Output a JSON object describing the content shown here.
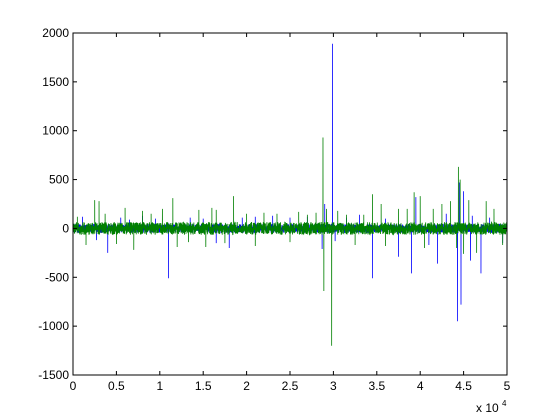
{
  "chart_data": {
    "type": "line",
    "title": "",
    "xlabel": "",
    "ylabel": "",
    "xlim": [
      0,
      50000
    ],
    "ylim": [
      -1500,
      2000
    ],
    "x_ticks": [
      0,
      5000,
      10000,
      15000,
      20000,
      25000,
      30000,
      35000,
      40000,
      45000,
      50000
    ],
    "x_tick_labels": [
      "0",
      "0.5",
      "1",
      "1.5",
      "2",
      "2.5",
      "3",
      "3.5",
      "4",
      "4.5",
      "5"
    ],
    "x_exponent_base": "x 10",
    "x_exponent_power": "4",
    "y_ticks": [
      -1500,
      -1000,
      -500,
      0,
      500,
      1000,
      1500,
      2000
    ],
    "y_tick_labels": [
      "-1500",
      "-1000",
      "-500",
      "0",
      "500",
      "1000",
      "1500",
      "2000"
    ],
    "grid": false,
    "legend": "none",
    "series": [
      {
        "color": "#0000ff",
        "baseline_amplitude": 45,
        "spikes": [
          [
            1100,
            120
          ],
          [
            2700,
            -120
          ],
          [
            4000,
            -250
          ],
          [
            5500,
            110
          ],
          [
            6500,
            90
          ],
          [
            8000,
            130
          ],
          [
            9500,
            100
          ],
          [
            11000,
            -510
          ],
          [
            13500,
            110
          ],
          [
            15000,
            100
          ],
          [
            16500,
            -150
          ],
          [
            18000,
            -200
          ],
          [
            19500,
            110
          ],
          [
            21000,
            120
          ],
          [
            23000,
            130
          ],
          [
            25000,
            110
          ],
          [
            27000,
            120
          ],
          [
            28700,
            -210
          ],
          [
            29000,
            250
          ],
          [
            29900,
            1890
          ],
          [
            30200,
            -130
          ],
          [
            31500,
            110
          ],
          [
            33000,
            140
          ],
          [
            34500,
            -510
          ],
          [
            36000,
            100
          ],
          [
            37500,
            -290
          ],
          [
            39000,
            -460
          ],
          [
            39500,
            320
          ],
          [
            41000,
            -170
          ],
          [
            42000,
            -360
          ],
          [
            43000,
            150
          ],
          [
            44300,
            -950
          ],
          [
            44500,
            470
          ],
          [
            44700,
            -780
          ],
          [
            45000,
            380
          ],
          [
            45800,
            -330
          ],
          [
            46000,
            130
          ],
          [
            47000,
            -460
          ],
          [
            48000,
            110
          ],
          [
            49500,
            -150
          ]
        ]
      },
      {
        "color": "#008000",
        "baseline_amplitude": 65,
        "spikes": [
          [
            500,
            120
          ],
          [
            1500,
            -170
          ],
          [
            2500,
            290
          ],
          [
            3000,
            280
          ],
          [
            3700,
            150
          ],
          [
            5000,
            -160
          ],
          [
            6000,
            210
          ],
          [
            7000,
            -220
          ],
          [
            8000,
            180
          ],
          [
            9000,
            150
          ],
          [
            10300,
            200
          ],
          [
            11500,
            310
          ],
          [
            12000,
            -190
          ],
          [
            13300,
            -140
          ],
          [
            14500,
            190
          ],
          [
            15300,
            -190
          ],
          [
            16000,
            210
          ],
          [
            16500,
            190
          ],
          [
            17500,
            -150
          ],
          [
            18500,
            330
          ],
          [
            20000,
            150
          ],
          [
            21000,
            -180
          ],
          [
            22000,
            160
          ],
          [
            23500,
            150
          ],
          [
            25000,
            -140
          ],
          [
            26000,
            170
          ],
          [
            27000,
            140
          ],
          [
            28000,
            160
          ],
          [
            28800,
            930
          ],
          [
            28900,
            -640
          ],
          [
            29200,
            200
          ],
          [
            29800,
            -1200
          ],
          [
            30500,
            180
          ],
          [
            31500,
            140
          ],
          [
            32500,
            -170
          ],
          [
            33500,
            140
          ],
          [
            34500,
            350
          ],
          [
            35500,
            250
          ],
          [
            36000,
            -180
          ],
          [
            37500,
            200
          ],
          [
            38500,
            200
          ],
          [
            39300,
            370
          ],
          [
            40000,
            330
          ],
          [
            40500,
            -200
          ],
          [
            41500,
            200
          ],
          [
            42500,
            250
          ],
          [
            43500,
            280
          ],
          [
            44200,
            -200
          ],
          [
            44400,
            630
          ],
          [
            44600,
            500
          ],
          [
            45000,
            -260
          ],
          [
            45600,
            290
          ],
          [
            46500,
            -250
          ],
          [
            47600,
            280
          ],
          [
            48500,
            200
          ],
          [
            49500,
            -170
          ]
        ]
      }
    ]
  }
}
